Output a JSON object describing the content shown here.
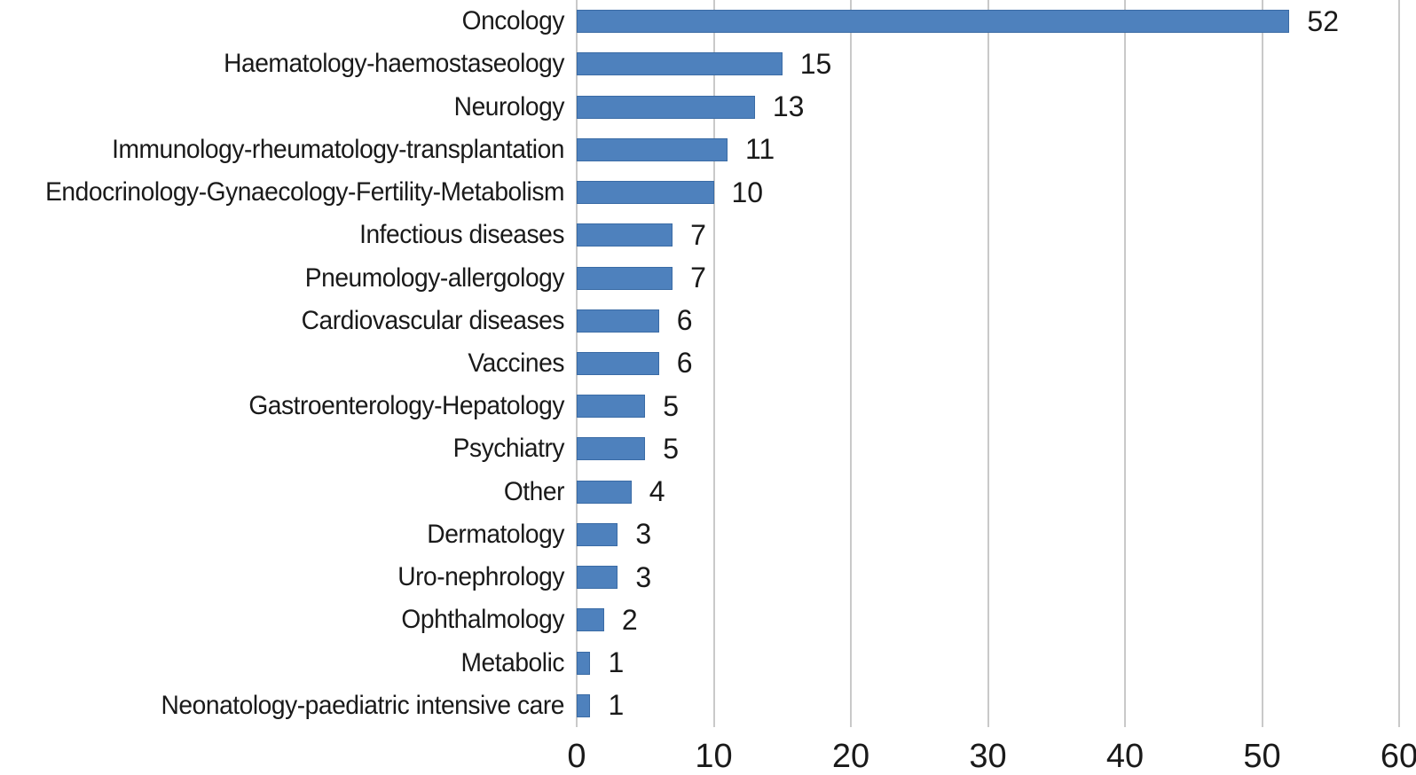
{
  "chart_data": {
    "type": "bar",
    "orientation": "horizontal",
    "title": "",
    "xlabel": "",
    "ylabel": "",
    "categories": [
      "Oncology",
      "Haematology-haemostaseology",
      "Neurology",
      "Immunology-rheumatology-transplantation",
      "Endocrinology-Gynaecology-Fertility-Metabolism",
      "Infectious diseases",
      "Pneumology-allergology",
      "Cardiovascular diseases",
      "Vaccines",
      "Gastroenterology-Hepatology",
      "Psychiatry",
      "Other",
      "Dermatology",
      "Uro-nephrology",
      "Ophthalmology",
      "Metabolic",
      "Neonatology-paediatric intensive care"
    ],
    "values": [
      52,
      15,
      13,
      11,
      10,
      7,
      7,
      6,
      6,
      5,
      5,
      4,
      3,
      3,
      2,
      1,
      1
    ],
    "data_labels": [
      52,
      15,
      13,
      11,
      10,
      7,
      7,
      6,
      6,
      5,
      5,
      4,
      3,
      3,
      2,
      1,
      1
    ],
    "xlim": [
      0,
      60
    ],
    "x_ticks": [
      0,
      10,
      20,
      30,
      40,
      50,
      60
    ],
    "grid": true,
    "legend": false,
    "colors": {
      "bar_fill": "#4E81BD",
      "bar_border": "#3A6BA5",
      "gridline": "#C9C9C9",
      "text": "#1A1A1A",
      "background": "#FFFFFF"
    }
  }
}
